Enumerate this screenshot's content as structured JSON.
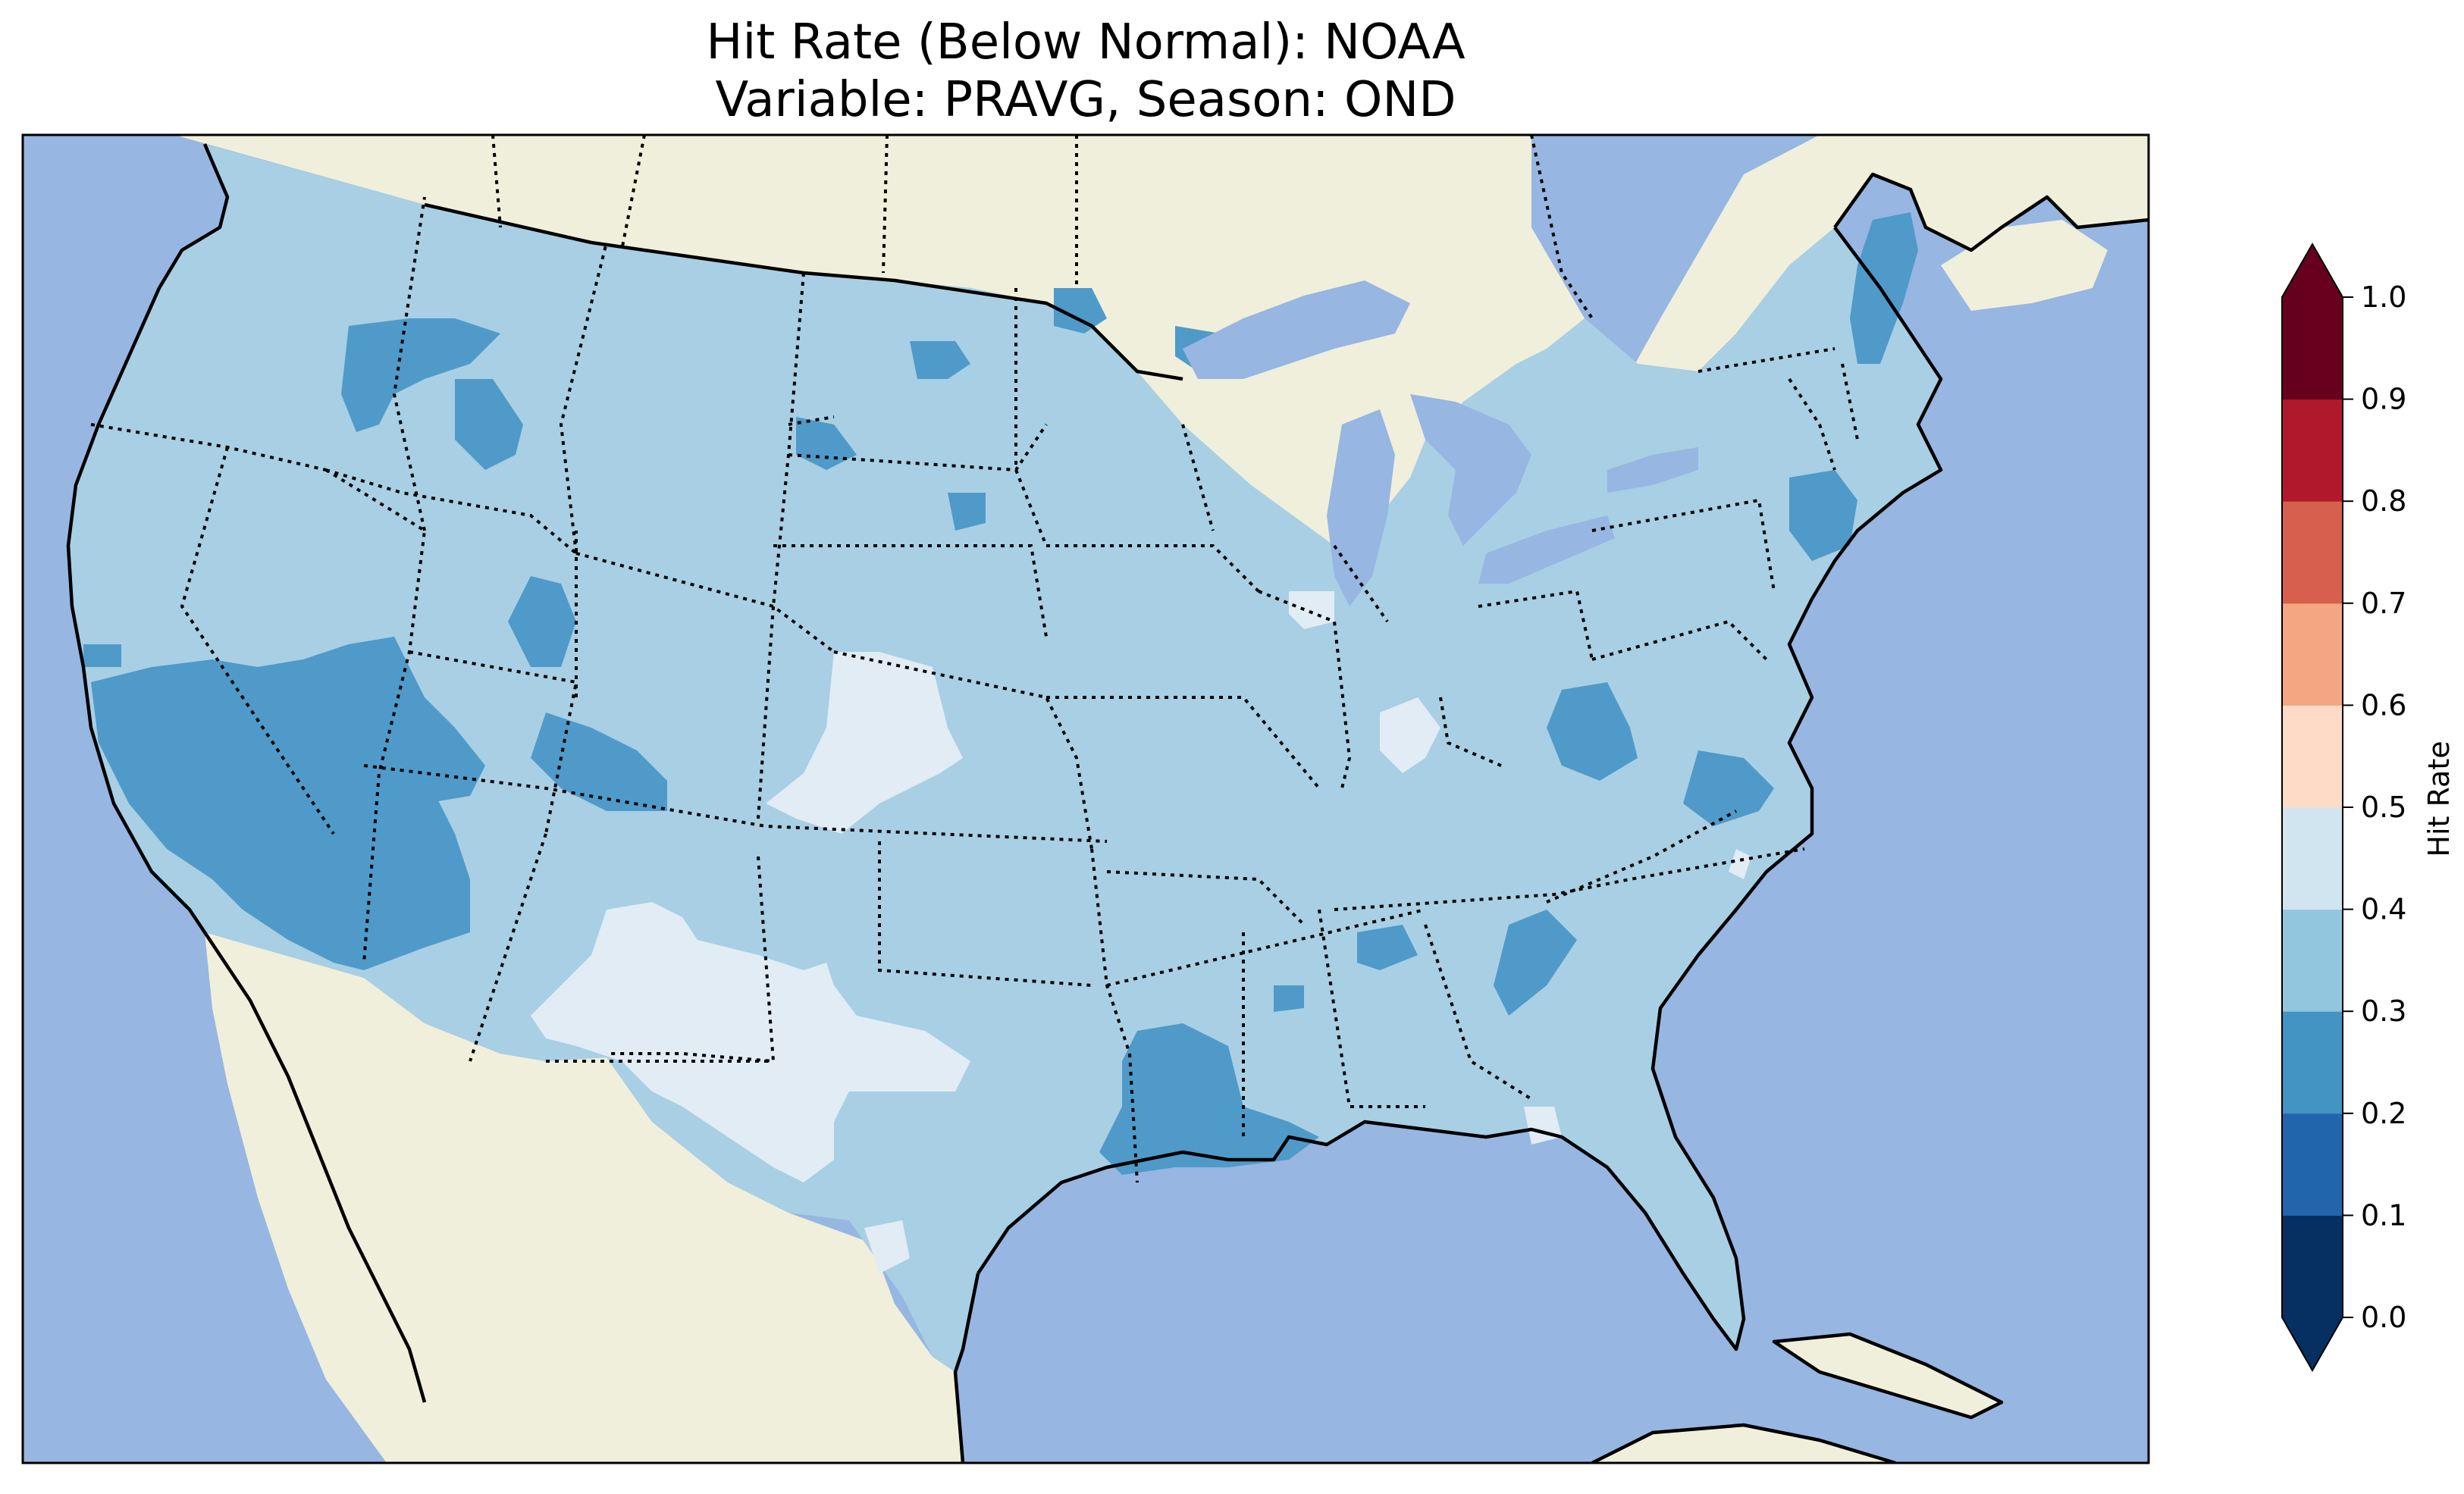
{
  "title_line1": "Hit Rate (Below Normal): NOAA",
  "title_line2": "Variable: PRAVG, Season: OND",
  "colorbar": {
    "label": "Hit Rate",
    "ticks": [
      "0.0",
      "0.1",
      "0.2",
      "0.3",
      "0.4",
      "0.5",
      "0.6",
      "0.7",
      "0.8",
      "0.9",
      "1.0"
    ],
    "colors": [
      "#053061",
      "#2166ac",
      "#4393c3",
      "#92c5de",
      "#d1e5f0",
      "#fddbc7",
      "#f4a582",
      "#d6604d",
      "#b2182b",
      "#67001f"
    ],
    "extend": "both"
  },
  "map_colors": {
    "ocean": "#97b6e1",
    "land": "#efefdb",
    "class_0.2_0.3": "#4f9ac9",
    "class_0.3_0.4": "#a8cfe4",
    "class_0.4_0.5": "#e1ecf4"
  },
  "chart_data": {
    "type": "heatmap",
    "title": "Hit Rate (Below Normal): NOAA\nVariable: PRAVG, Season: OND",
    "colorbar_label": "Hit Rate",
    "value_range": [
      0.0,
      1.0
    ],
    "bin_edges": [
      0.0,
      0.1,
      0.2,
      0.3,
      0.4,
      0.5,
      0.6,
      0.7,
      0.8,
      0.9,
      1.0
    ],
    "region": "Contiguous United States",
    "dominant_class": "0.3-0.4",
    "regions_0.2_0.3": [
      "California",
      "Nevada",
      "Arizona",
      "Wasatch Utah",
      "Colorado Rockies",
      "Idaho",
      "Louisiana",
      "North Carolina",
      "Connecticut",
      "Maine",
      "West Virginia"
    ],
    "regions_0.4_0.5": [
      "Southeast Colorado / Western Kansas",
      "West Texas / New Mexico",
      "Southern Texas"
    ]
  }
}
